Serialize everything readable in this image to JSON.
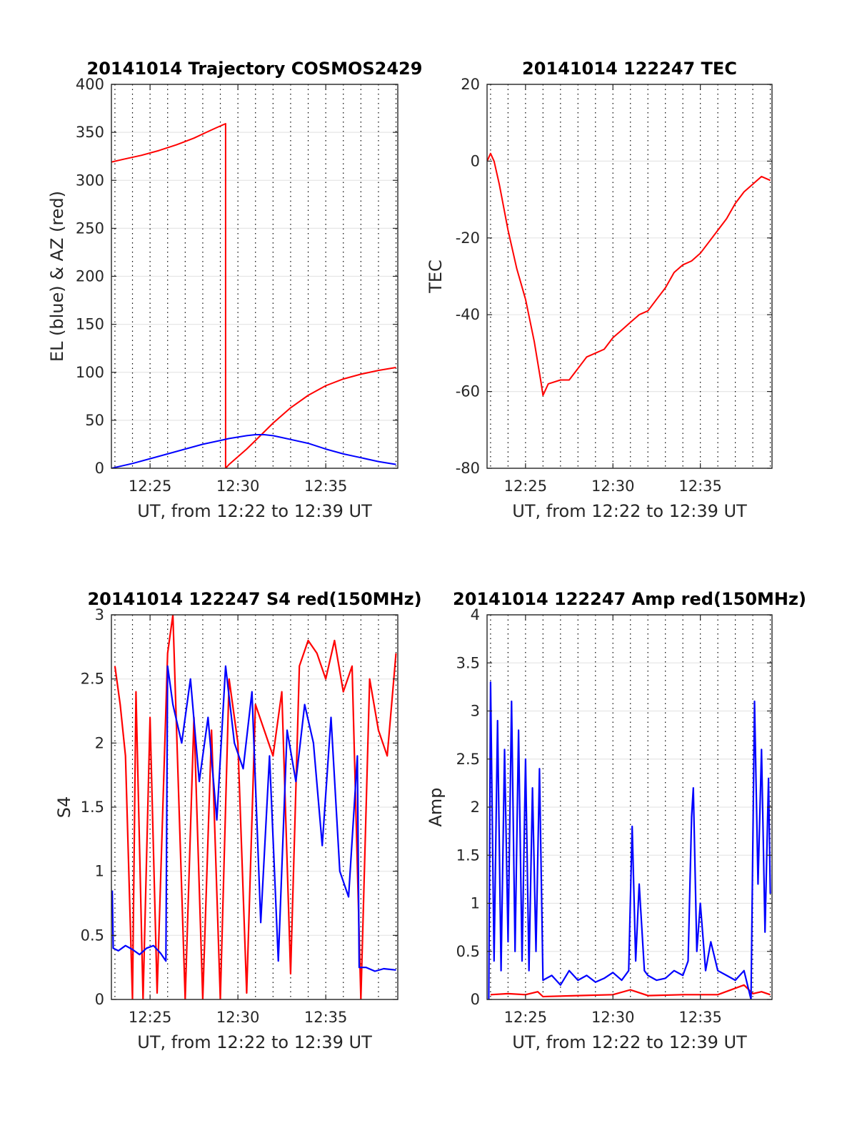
{
  "figure": {
    "background": "#ffffff"
  },
  "colors": {
    "el": "#0000ff",
    "az": "#ff0000",
    "tec": "#ff0000",
    "s4_red": "#ff0000",
    "s4_blue": "#0000ff",
    "amp_red": "#ff0000",
    "amp_blue": "#0000ff",
    "grid_major": "#e6e6e6",
    "grid_minor": "#000000"
  },
  "chart_data": [
    {
      "id": "traj",
      "type": "line",
      "title": "20141014 Trajectory COSMOS2429",
      "xlabel": "UT, from 12:22 to 12:39 UT",
      "ylabel": "EL (blue) & AZ (red)",
      "xlim": [
        22.8,
        39.1
      ],
      "ylim": [
        0,
        400
      ],
      "xticks": [
        25,
        30,
        35
      ],
      "xticklabels": [
        "12:25",
        "12:30",
        "12:35"
      ],
      "yticks": [
        0,
        50,
        100,
        150,
        200,
        250,
        300,
        350,
        400
      ],
      "yticklabels": [
        "0",
        "50",
        "100",
        "150",
        "200",
        "250",
        "300",
        "350",
        "400"
      ],
      "series": [
        {
          "name": "AZ",
          "color": "#ff0000",
          "x": [
            22.8,
            23.5,
            24.5,
            25.5,
            26.5,
            27.5,
            28.2,
            28.8,
            29.3,
            29.3,
            29.5,
            30.0,
            30.5,
            31.0,
            31.5,
            32.0,
            33.0,
            34.0,
            35.0,
            36.0,
            37.0,
            38.0,
            39.0
          ],
          "y": [
            319,
            322,
            326,
            331,
            337,
            344,
            350,
            355,
            359,
            0,
            4,
            12,
            20,
            29,
            38,
            47,
            63,
            76,
            86,
            93,
            98,
            102,
            105
          ]
        },
        {
          "name": "EL",
          "color": "#0000ff",
          "x": [
            22.8,
            24.0,
            25.0,
            26.0,
            27.0,
            28.0,
            29.0,
            29.5,
            30.0,
            30.5,
            31.0,
            31.5,
            32.0,
            32.5,
            33.0,
            34.0,
            35.0,
            36.0,
            37.0,
            38.0,
            39.0
          ],
          "y": [
            0,
            5,
            10,
            15,
            20,
            25,
            29,
            31,
            32.5,
            34,
            35,
            35,
            34,
            32,
            30,
            26,
            20,
            15,
            11,
            7,
            4
          ]
        }
      ]
    },
    {
      "id": "tec",
      "type": "line",
      "title": "20141014 122247 TEC",
      "xlabel": "UT, from 12:22 to 12:39 UT",
      "ylabel": "TEC",
      "xlim": [
        22.8,
        39.1
      ],
      "ylim": [
        -80,
        20
      ],
      "xticks": [
        25,
        30,
        35
      ],
      "xticklabels": [
        "12:25",
        "12:30",
        "12:35"
      ],
      "yticks": [
        -80,
        -60,
        -40,
        -20,
        0,
        20
      ],
      "yticklabels": [
        "-80",
        "-60",
        "-40",
        "-20",
        "0",
        "20"
      ],
      "series": [
        {
          "name": "TEC",
          "color": "#ff0000",
          "x": [
            22.8,
            23.0,
            23.2,
            23.5,
            24.0,
            24.5,
            25.0,
            25.5,
            25.9,
            26.0,
            26.3,
            27.0,
            27.5,
            28.0,
            28.5,
            29.0,
            29.5,
            30.0,
            30.5,
            31.0,
            31.5,
            32.0,
            32.5,
            33.0,
            33.5,
            34.0,
            34.5,
            35.0,
            35.5,
            36.0,
            36.5,
            37.0,
            37.5,
            38.0,
            38.5,
            39.0
          ],
          "y": [
            0,
            2,
            0,
            -6,
            -18,
            -28,
            -36,
            -47,
            -58,
            -61,
            -58,
            -57,
            -57,
            -54,
            -51,
            -50,
            -49,
            -46,
            -44,
            -42,
            -40,
            -39,
            -36,
            -33,
            -29,
            -27,
            -26,
            -24,
            -21,
            -18,
            -15,
            -11,
            -8,
            -6,
            -4,
            -5
          ]
        }
      ]
    },
    {
      "id": "s4",
      "type": "line",
      "title": "20141014 122247 S4 red(150MHz)",
      "xlabel": "UT, from 12:22 to 12:39 UT",
      "ylabel": "S4",
      "xlim": [
        22.8,
        39.1
      ],
      "ylim": [
        0,
        3
      ],
      "xticks": [
        25,
        30,
        35
      ],
      "xticklabels": [
        "12:25",
        "12:30",
        "12:35"
      ],
      "yticks": [
        0,
        0.5,
        1,
        1.5,
        2,
        2.5,
        3
      ],
      "yticklabels": [
        "0",
        "0.5",
        "1",
        "1.5",
        "2",
        "2.5",
        "3"
      ],
      "series": [
        {
          "name": "red",
          "color": "#ff0000",
          "x": [
            23.0,
            23.3,
            23.6,
            24.0,
            24.2,
            24.6,
            25.0,
            25.4,
            26.0,
            26.3,
            27.0,
            27.5,
            28.0,
            28.5,
            29.0,
            29.5,
            30.0,
            30.5,
            31.0,
            31.5,
            32.0,
            32.5,
            33.0,
            33.5,
            34.0,
            34.5,
            35.0,
            35.5,
            36.0,
            36.5,
            37.0,
            37.5,
            38.0,
            38.5,
            39.0
          ],
          "y": [
            2.6,
            2.3,
            1.9,
            0.0,
            2.4,
            0.0,
            2.2,
            0.05,
            2.7,
            3.0,
            0.0,
            2.2,
            0.0,
            2.1,
            0.0,
            2.5,
            2.0,
            0.05,
            2.3,
            2.1,
            1.9,
            2.4,
            0.2,
            2.6,
            2.8,
            2.7,
            2.5,
            2.8,
            2.4,
            2.6,
            0.0,
            2.5,
            2.1,
            1.9,
            2.7
          ]
        },
        {
          "name": "blue",
          "color": "#0000ff",
          "x": [
            22.85,
            22.9,
            23.2,
            23.6,
            24.0,
            24.4,
            24.8,
            25.2,
            25.6,
            25.9,
            26.0,
            26.3,
            26.8,
            27.3,
            27.8,
            28.3,
            28.8,
            29.3,
            29.8,
            30.3,
            30.8,
            31.3,
            31.8,
            32.3,
            32.8,
            33.3,
            33.8,
            34.3,
            34.8,
            35.3,
            35.8,
            36.3,
            36.8,
            36.9,
            37.3,
            37.8,
            38.3,
            39.0
          ],
          "y": [
            0.85,
            0.4,
            0.38,
            0.42,
            0.39,
            0.35,
            0.4,
            0.42,
            0.36,
            0.3,
            2.6,
            2.3,
            2.0,
            2.5,
            1.7,
            2.2,
            1.4,
            2.6,
            2.0,
            1.8,
            2.4,
            0.6,
            1.9,
            0.3,
            2.1,
            1.7,
            2.3,
            2.0,
            1.2,
            2.2,
            1.0,
            0.8,
            1.9,
            0.25,
            0.25,
            0.22,
            0.24,
            0.23
          ]
        }
      ]
    },
    {
      "id": "amp",
      "type": "line",
      "title": "20141014 122247 Amp red(150MHz)",
      "xlabel": "UT, from 12:22 to 12:39 UT",
      "ylabel": "Amp",
      "xlim": [
        22.8,
        39.1
      ],
      "ylim": [
        0,
        4
      ],
      "xticks": [
        25,
        30,
        35
      ],
      "xticklabels": [
        "12:25",
        "12:30",
        "12:35"
      ],
      "yticks": [
        0,
        0.5,
        1,
        1.5,
        2,
        2.5,
        3,
        3.5,
        4
      ],
      "yticklabels": [
        "0",
        "0.5",
        "1",
        "1.5",
        "2",
        "2.5",
        "3",
        "3.5",
        "4"
      ],
      "series": [
        {
          "name": "red",
          "color": "#ff0000",
          "x": [
            23.0,
            24.0,
            25.0,
            25.7,
            26.0,
            28.0,
            30.0,
            31.0,
            32.0,
            34.0,
            36.0,
            37.5,
            38.0,
            38.5,
            39.0
          ],
          "y": [
            0.05,
            0.06,
            0.05,
            0.08,
            0.03,
            0.04,
            0.05,
            0.1,
            0.04,
            0.05,
            0.05,
            0.15,
            0.06,
            0.08,
            0.05
          ]
        },
        {
          "name": "blue",
          "color": "#0000ff",
          "x": [
            22.9,
            23.0,
            23.2,
            23.4,
            23.6,
            23.8,
            24.0,
            24.2,
            24.4,
            24.6,
            24.8,
            25.0,
            25.2,
            25.4,
            25.6,
            25.8,
            26.0,
            26.5,
            27.0,
            27.5,
            28.0,
            28.5,
            29.0,
            29.5,
            30.0,
            30.5,
            30.9,
            31.1,
            31.3,
            31.5,
            31.8,
            32.0,
            32.5,
            33.0,
            33.5,
            34.0,
            34.3,
            34.5,
            34.6,
            34.8,
            35.0,
            35.3,
            35.6,
            36.0,
            36.5,
            37.0,
            37.5,
            37.9,
            38.1,
            38.3,
            38.5,
            38.7,
            38.9,
            39.0
          ],
          "y": [
            0.0,
            3.3,
            0.4,
            2.9,
            0.3,
            2.6,
            0.6,
            3.1,
            0.5,
            2.8,
            0.4,
            2.5,
            0.3,
            2.2,
            0.5,
            2.4,
            0.2,
            0.25,
            0.15,
            0.3,
            0.2,
            0.25,
            0.18,
            0.22,
            0.28,
            0.2,
            0.3,
            1.8,
            0.4,
            1.2,
            0.3,
            0.25,
            0.2,
            0.22,
            0.3,
            0.25,
            0.4,
            1.9,
            2.2,
            0.5,
            1.0,
            0.3,
            0.6,
            0.3,
            0.25,
            0.2,
            0.3,
            0.0,
            3.1,
            1.2,
            2.6,
            0.7,
            2.3,
            1.1
          ]
        }
      ]
    }
  ]
}
